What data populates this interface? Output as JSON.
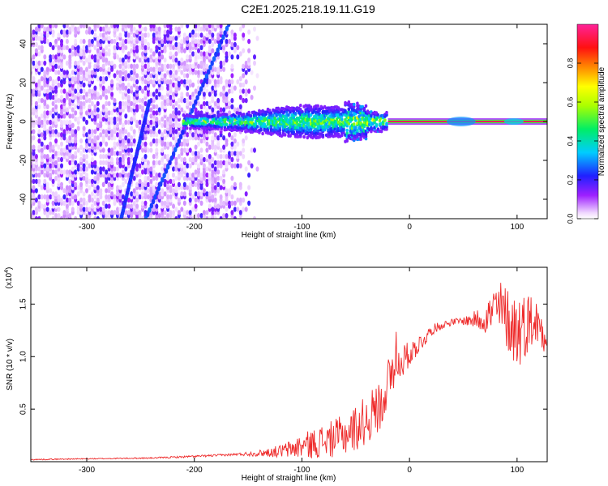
{
  "title": "C2E1.2025.218.19.11.G19",
  "colorbar": {
    "label": "Normalized spectral amplitude",
    "ticks": [
      "0.0",
      "0.2",
      "0.4",
      "0.6",
      "0.8"
    ]
  },
  "chart_data": [
    {
      "type": "heatmap",
      "title": "C2E1.2025.218.19.11.G19",
      "xlabel": "Height of straight line (km)",
      "ylabel": "Frequency (Hz)",
      "xlim": [
        -352,
        128
      ],
      "ylim": [
        -50,
        50
      ],
      "x_ticks": [
        -300,
        -200,
        -100,
        0,
        100
      ],
      "x_tick_labels": [
        "-300",
        "-200",
        "-100",
        "0",
        "100"
      ],
      "y_ticks": [
        -40,
        -20,
        0,
        20,
        40
      ],
      "y_tick_labels": [
        "-40",
        "-20",
        "0",
        "20",
        "40"
      ],
      "colorscale": "rainbow (white-purple-blue-cyan-green-yellow-red-magenta)",
      "zlim": [
        0,
        1
      ],
      "features": [
        {
          "name": "noise",
          "x_range": [
            -352,
            -140
          ],
          "y_range": [
            -50,
            50
          ],
          "level": 0.12
        },
        {
          "name": "streak",
          "x": [
            -245,
            -168
          ],
          "y": [
            -50,
            50
          ],
          "level": 0.22
        },
        {
          "name": "streak",
          "x": [
            -268,
            -242
          ],
          "y": [
            -50,
            10
          ],
          "level": 0.2
        },
        {
          "name": "band",
          "x_range": [
            -210,
            -20
          ],
          "y_range": [
            -8,
            8
          ],
          "level": 0.35
        },
        {
          "name": "narrow_line",
          "x_range": [
            -20,
            128
          ],
          "y_range": [
            -2,
            2
          ],
          "level": 0.95
        }
      ]
    },
    {
      "type": "line",
      "xlabel": "Height of straight line (km)",
      "ylabel": "SNR (10 * v/v)",
      "y_multiplier": "(x10^4)",
      "xlim": [
        -352,
        128
      ],
      "ylim": [
        0,
        1.85
      ],
      "grid": false,
      "x_ticks": [
        -300,
        -200,
        -100,
        0,
        100
      ],
      "x_tick_labels": [
        "-300",
        "-200",
        "-100",
        "0",
        "100"
      ],
      "y_ticks": [
        0.5,
        1.0,
        1.5
      ],
      "y_tick_labels": [
        "0.5",
        "1.0",
        "1.5"
      ],
      "series": [
        {
          "color": "#ee2a2a",
          "x": [
            -352,
            -320,
            -280,
            -240,
            -200,
            -180,
            -160,
            -140,
            -120,
            -110,
            -100,
            -90,
            -80,
            -70,
            -60,
            -50,
            -40,
            -30,
            -25,
            -20,
            -15,
            -10,
            -5,
            0,
            5,
            10,
            15,
            20,
            30,
            40,
            50,
            60,
            70,
            75,
            80,
            85,
            90,
            95,
            100,
            105,
            110,
            115,
            120,
            125,
            128
          ],
          "y": [
            0.02,
            0.025,
            0.03,
            0.035,
            0.05,
            0.06,
            0.07,
            0.08,
            0.1,
            0.12,
            0.15,
            0.17,
            0.2,
            0.22,
            0.26,
            0.32,
            0.4,
            0.5,
            0.62,
            0.75,
            0.85,
            0.92,
            0.98,
            1.02,
            1.08,
            1.13,
            1.18,
            1.25,
            1.3,
            1.33,
            1.34,
            1.35,
            1.37,
            1.4,
            1.45,
            1.43,
            1.38,
            1.3,
            1.25,
            1.28,
            1.33,
            1.35,
            1.3,
            1.25,
            1.22
          ],
          "noise": [
            0.005,
            0.005,
            0.005,
            0.006,
            0.01,
            0.01,
            0.012,
            0.03,
            0.06,
            0.09,
            0.12,
            0.14,
            0.16,
            0.18,
            0.2,
            0.22,
            0.24,
            0.25,
            0.25,
            0.25,
            0.25,
            0.18,
            0.15,
            0.12,
            0.1,
            0.09,
            0.07,
            0.05,
            0.04,
            0.03,
            0.04,
            0.08,
            0.15,
            0.2,
            0.28,
            0.3,
            0.3,
            0.35,
            0.4,
            0.32,
            0.3,
            0.25,
            0.22,
            0.2,
            0.15
          ]
        }
      ]
    }
  ]
}
